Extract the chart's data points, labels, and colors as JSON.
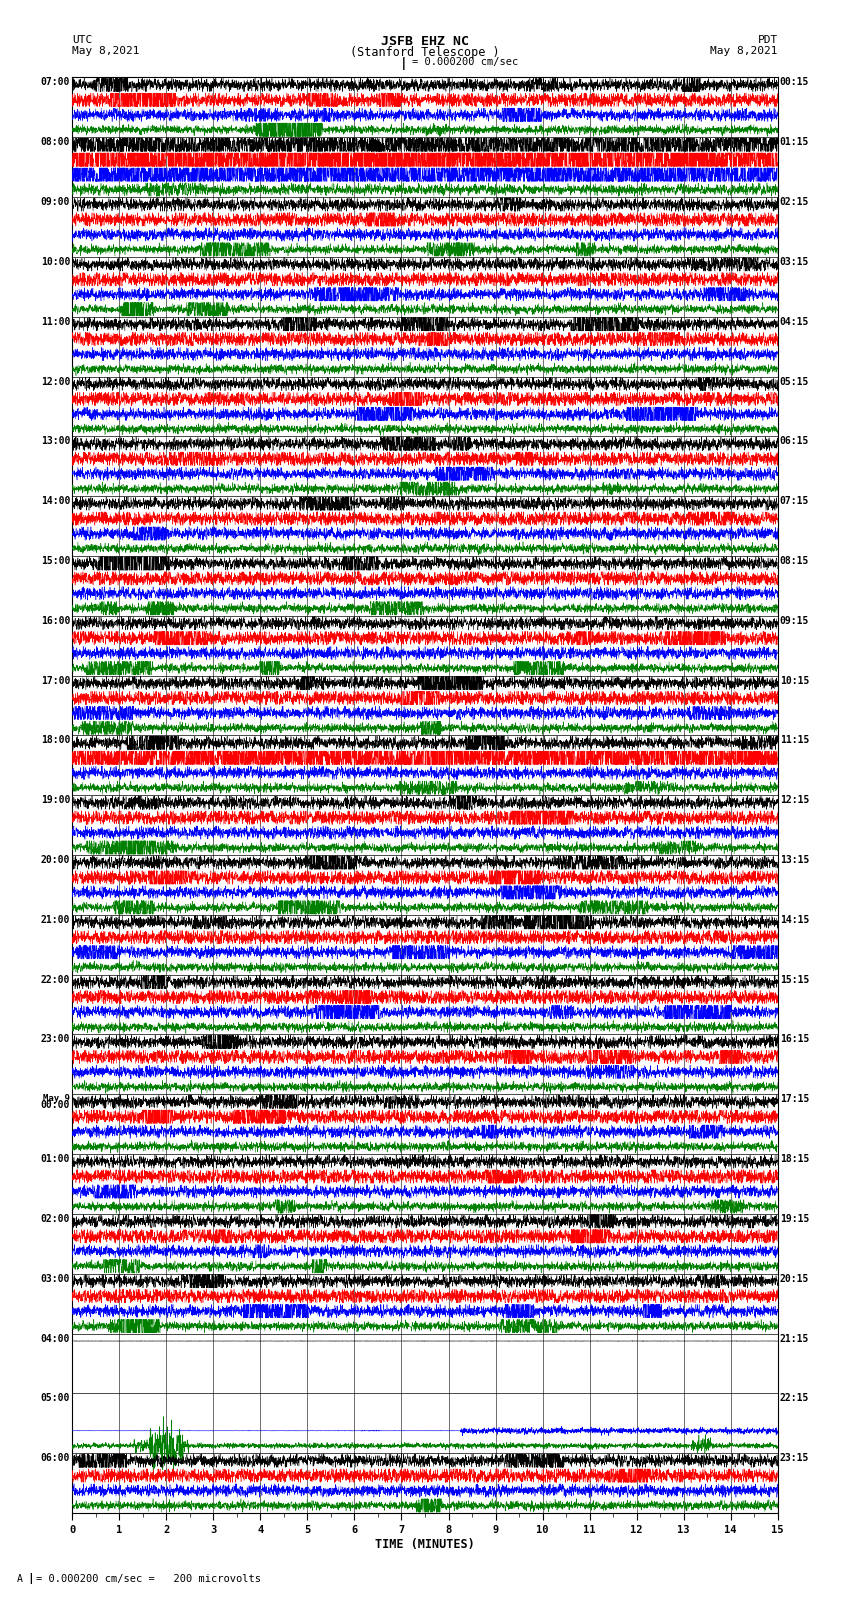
{
  "title_line1": "JSFB EHZ NC",
  "title_line2": "(Stanford Telescope )",
  "scale_label": "= 0.000200 cm/sec",
  "bottom_label": "= 0.000200 cm/sec =   200 microvolts",
  "left_header_line1": "UTC",
  "left_header_line2": "May 8,2021",
  "right_header_line1": "PDT",
  "right_header_line2": "May 8,2021",
  "xlabel": "TIME (MINUTES)",
  "bg_color": "#ffffff",
  "trace_colors": [
    "black",
    "red",
    "blue",
    "green"
  ],
  "minutes_per_row": 15,
  "left_labels": [
    "07:00",
    "08:00",
    "09:00",
    "10:00",
    "11:00",
    "12:00",
    "13:00",
    "14:00",
    "15:00",
    "16:00",
    "17:00",
    "18:00",
    "19:00",
    "20:00",
    "21:00",
    "22:00",
    "23:00",
    "May 9\n00:00",
    "01:00",
    "02:00",
    "03:00",
    "04:00",
    "05:00",
    "06:00"
  ],
  "right_labels": [
    "00:15",
    "01:15",
    "02:15",
    "03:15",
    "04:15",
    "05:15",
    "06:15",
    "07:15",
    "08:15",
    "09:15",
    "10:15",
    "11:15",
    "12:15",
    "13:15",
    "14:15",
    "15:15",
    "16:15",
    "17:15",
    "18:15",
    "19:15",
    "20:15",
    "21:15",
    "22:15",
    "23:15"
  ],
  "empty_rows": [
    21,
    22
  ],
  "partial_rows": {
    "22": [
      2,
      3
    ]
  },
  "fig_width": 8.5,
  "fig_height": 16.13,
  "dpi": 100
}
